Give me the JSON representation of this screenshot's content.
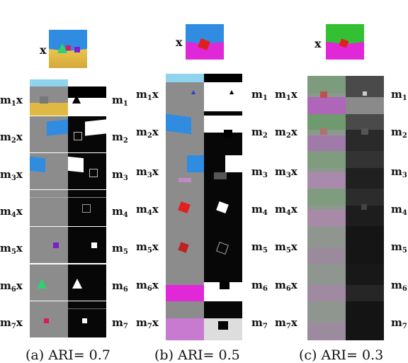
{
  "input_label": "x",
  "masks": [
    {
      "base": "m",
      "sub": "1",
      "suffix": "x"
    },
    {
      "base": "m",
      "sub": "2",
      "suffix": "x"
    },
    {
      "base": "m",
      "sub": "3",
      "suffix": "x"
    },
    {
      "base": "m",
      "sub": "4",
      "suffix": "x"
    },
    {
      "base": "m",
      "sub": "5",
      "suffix": "x"
    },
    {
      "base": "m",
      "sub": "6",
      "suffix": "x"
    },
    {
      "base": "m",
      "sub": "7",
      "suffix": "x"
    }
  ],
  "captions": {
    "a": "(a) ARI= 0.7",
    "b": "(b) ARI= 0.5",
    "c": "(c) ARI= 0.3"
  },
  "colors": {
    "sky": "#8fd3ef",
    "wall_blue": "#2f8ce0",
    "floor_yellow": "#e8c24a",
    "floor_magenta": "#e028d8",
    "wall_green": "#33c033",
    "object_green": "#2fd070",
    "object_purple": "#7a1fd0",
    "object_pink": "#e0185a",
    "object_red": "#e02020"
  }
}
